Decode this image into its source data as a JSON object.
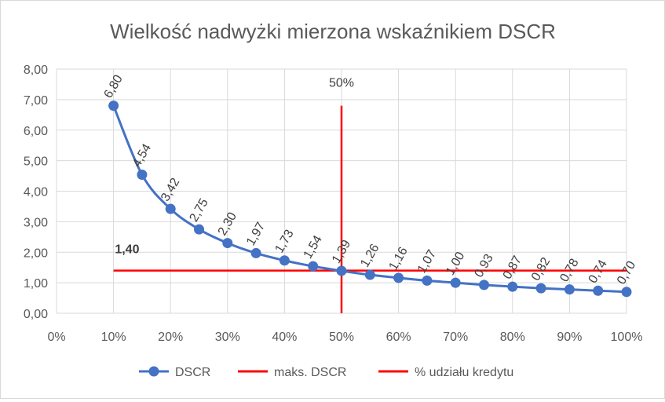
{
  "chart_data": {
    "type": "line",
    "title": "Wielkość nadwyżki mierzona wskaźnikiem DSCR",
    "xlabel": "",
    "ylabel": "",
    "xlim": [
      0,
      100
    ],
    "ylim": [
      0,
      8
    ],
    "x_ticks": [
      0,
      10,
      20,
      30,
      40,
      50,
      60,
      70,
      80,
      90,
      100
    ],
    "x_tick_labels": [
      "0%",
      "10%",
      "20%",
      "30%",
      "40%",
      "50%",
      "60%",
      "70%",
      "80%",
      "90%",
      "100%"
    ],
    "y_ticks": [
      0,
      1,
      2,
      3,
      4,
      5,
      6,
      7,
      8
    ],
    "y_tick_labels": [
      "0,00",
      "1,00",
      "2,00",
      "3,00",
      "4,00",
      "5,00",
      "6,00",
      "7,00",
      "8,00"
    ],
    "grid": true,
    "legend_position": "bottom",
    "series": [
      {
        "name": "DSCR",
        "color": "#4472C4",
        "style": "smooth-line-markers",
        "x": [
          10,
          15,
          20,
          25,
          30,
          35,
          40,
          45,
          50,
          55,
          60,
          65,
          70,
          75,
          80,
          85,
          90,
          95,
          100
        ],
        "y": [
          6.8,
          4.54,
          3.42,
          2.75,
          2.3,
          1.97,
          1.73,
          1.54,
          1.39,
          1.26,
          1.16,
          1.07,
          1.0,
          0.93,
          0.87,
          0.82,
          0.78,
          0.74,
          0.7
        ],
        "labels": [
          "6,80",
          "4,54",
          "3,42",
          "2,75",
          "2,30",
          "1,97",
          "1,73",
          "1,54",
          "1,39",
          "1,26",
          "1,16",
          "1,07",
          "1,00",
          "0,93",
          "0,87",
          "0,82",
          "0,78",
          "0,74",
          "0,70"
        ]
      },
      {
        "name": "maks. DSCR",
        "color": "#FF0000",
        "x": [
          10,
          100
        ],
        "y": [
          1.4,
          1.4
        ],
        "label": "1,40",
        "label_at_x": 15
      },
      {
        "name": "% udziału kredytu",
        "color": "#FF0000",
        "x": [
          50,
          50
        ],
        "y": [
          0,
          6.8
        ],
        "label": "50%"
      }
    ]
  }
}
